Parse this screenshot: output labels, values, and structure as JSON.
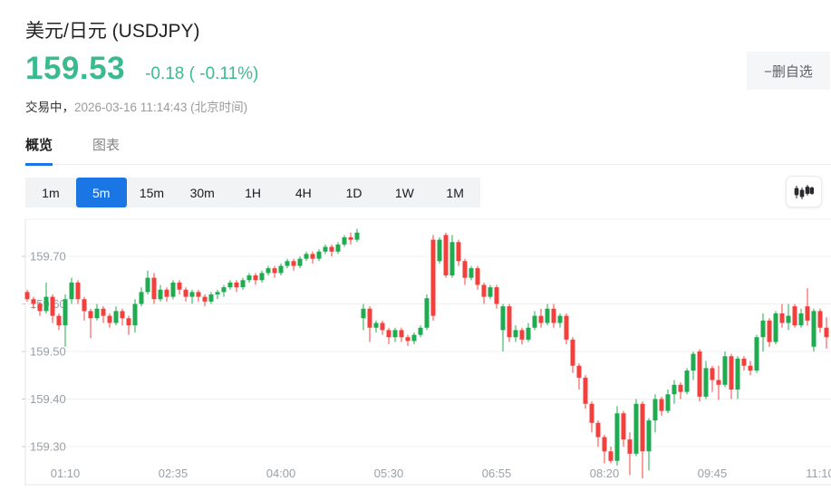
{
  "header": {
    "title": "美元/日元  (USDJPY)",
    "price": "159.53",
    "change": "-0.18 ( -0.11%)",
    "status_label": "交易中，",
    "status_time": "2026-03-16 11:14:43",
    "status_tz": " (北京时间)",
    "remove_button": "−删自选"
  },
  "tabs": [
    {
      "label": "概览",
      "active": true
    },
    {
      "label": "图表",
      "active": false
    }
  ],
  "intervals": [
    "1m",
    "5m",
    "15m",
    "30m",
    "1H",
    "4H",
    "1D",
    "1W",
    "1M"
  ],
  "active_interval": "5m",
  "colors": {
    "price_green": "#3abb8e",
    "candle_up": "#1fab4f",
    "candle_down": "#f4403c",
    "accent_blue": "#1a76e4",
    "grid": "#f0f0f0",
    "axis_border": "#e6e6e6",
    "label_gray": "#9aa0a6"
  },
  "chart_data": {
    "type": "candlestick",
    "title": "USDJPY 5m",
    "interval": "5m",
    "y_ticks": [
      {
        "label": "159.70",
        "value": 159.7
      },
      {
        "label": "159.60",
        "value": 159.6
      },
      {
        "label": "159.50",
        "value": 159.5
      },
      {
        "label": "159.40",
        "value": 159.4
      },
      {
        "label": "159.30",
        "value": 159.3
      }
    ],
    "x_ticks": [
      {
        "label": "01:10",
        "index": 6
      },
      {
        "label": "02:35",
        "index": 23
      },
      {
        "label": "04:00",
        "index": 40
      },
      {
        "label": "05:30",
        "index": 57
      },
      {
        "label": "06:55",
        "index": 74
      },
      {
        "label": "08:20",
        "index": 91
      },
      {
        "label": "09:45",
        "index": 108
      },
      {
        "label": "11:10",
        "index": 125
      }
    ],
    "ylim": [
      159.23,
      159.78
    ],
    "last_price": 159.53,
    "candles_format": [
      "open",
      "high",
      "low",
      "close"
    ],
    "candles": [
      [
        159.625,
        159.63,
        159.605,
        159.61
      ],
      [
        159.61,
        159.615,
        159.59,
        159.6
      ],
      [
        159.6,
        159.605,
        159.575,
        159.585
      ],
      [
        159.585,
        159.645,
        159.58,
        159.615
      ],
      [
        159.615,
        159.62,
        159.56,
        159.575
      ],
      [
        159.575,
        159.58,
        159.545,
        159.555
      ],
      [
        159.555,
        159.62,
        159.51,
        159.61
      ],
      [
        159.61,
        159.655,
        159.6,
        159.645
      ],
      [
        159.645,
        159.65,
        159.6,
        159.61
      ],
      [
        159.61,
        159.615,
        159.565,
        159.585
      ],
      [
        159.585,
        159.59,
        159.528,
        159.57
      ],
      [
        159.57,
        159.6,
        159.565,
        159.59
      ],
      [
        159.59,
        159.595,
        159.56,
        159.575
      ],
      [
        159.575,
        159.58,
        159.55,
        159.56
      ],
      [
        159.56,
        159.595,
        159.555,
        159.585
      ],
      [
        159.585,
        159.59,
        159.555,
        159.57
      ],
      [
        159.57,
        159.575,
        159.535,
        159.555
      ],
      [
        159.555,
        159.61,
        159.54,
        159.6
      ],
      [
        159.6,
        159.635,
        159.595,
        159.625
      ],
      [
        159.625,
        159.67,
        159.62,
        159.655
      ],
      [
        159.655,
        159.665,
        159.6,
        159.61
      ],
      [
        159.61,
        159.64,
        159.605,
        159.63
      ],
      [
        159.63,
        159.635,
        159.605,
        159.615
      ],
      [
        159.615,
        159.65,
        159.61,
        159.645
      ],
      [
        159.645,
        159.65,
        159.62,
        159.63
      ],
      [
        159.63,
        159.635,
        159.605,
        159.615
      ],
      [
        159.615,
        159.63,
        159.6,
        159.625
      ],
      [
        159.625,
        159.63,
        159.605,
        159.615
      ],
      [
        159.615,
        159.62,
        159.595,
        159.605
      ],
      [
        159.605,
        159.625,
        159.6,
        159.62
      ],
      [
        159.62,
        159.63,
        159.61,
        159.625
      ],
      [
        159.625,
        159.64,
        159.615,
        159.635
      ],
      [
        159.635,
        159.65,
        159.63,
        159.645
      ],
      [
        159.645,
        159.65,
        159.625,
        159.635
      ],
      [
        159.635,
        159.655,
        159.63,
        159.65
      ],
      [
        159.65,
        159.665,
        159.645,
        159.66
      ],
      [
        159.66,
        159.665,
        159.64,
        159.65
      ],
      [
        159.65,
        159.67,
        159.645,
        159.665
      ],
      [
        159.665,
        159.68,
        159.66,
        159.675
      ],
      [
        159.675,
        159.68,
        159.655,
        159.665
      ],
      [
        159.665,
        159.685,
        159.66,
        159.68
      ],
      [
        159.68,
        159.695,
        159.675,
        159.69
      ],
      [
        159.69,
        159.695,
        159.67,
        159.68
      ],
      [
        159.68,
        159.7,
        159.675,
        159.695
      ],
      [
        159.695,
        159.71,
        159.69,
        159.705
      ],
      [
        159.705,
        159.71,
        159.685,
        159.695
      ],
      [
        159.695,
        159.715,
        159.69,
        159.71
      ],
      [
        159.71,
        159.725,
        159.705,
        159.72
      ],
      [
        159.72,
        159.725,
        159.7,
        159.71
      ],
      [
        159.71,
        159.73,
        159.705,
        159.725
      ],
      [
        159.725,
        159.745,
        159.72,
        159.74
      ],
      [
        159.74,
        159.75,
        159.725,
        159.735
      ],
      [
        159.735,
        159.758,
        159.73,
        159.75
      ],
      [
        159.57,
        159.6,
        159.545,
        159.59
      ],
      [
        159.59,
        159.595,
        159.52,
        159.55
      ],
      [
        159.55,
        159.565,
        159.54,
        159.56
      ],
      [
        159.56,
        159.565,
        159.535,
        159.545
      ],
      [
        159.545,
        159.55,
        159.515,
        159.53
      ],
      [
        159.53,
        159.55,
        159.52,
        159.545
      ],
      [
        159.545,
        159.55,
        159.52,
        159.53
      ],
      [
        159.53,
        159.535,
        159.512,
        159.522
      ],
      [
        159.522,
        159.54,
        159.515,
        159.535
      ],
      [
        159.535,
        159.555,
        159.53,
        159.55
      ],
      [
        159.55,
        159.62,
        159.545,
        159.612
      ],
      [
        159.735,
        159.745,
        159.565,
        159.575
      ],
      [
        159.69,
        159.74,
        159.685,
        159.735
      ],
      [
        159.745,
        159.75,
        159.655,
        159.66
      ],
      [
        159.66,
        159.745,
        159.655,
        159.73
      ],
      [
        159.73,
        159.735,
        159.68,
        159.69
      ],
      [
        159.69,
        159.695,
        159.64,
        159.655
      ],
      [
        159.655,
        159.68,
        159.65,
        159.675
      ],
      [
        159.675,
        159.68,
        159.63,
        159.64
      ],
      [
        159.64,
        159.645,
        159.6,
        159.615
      ],
      [
        159.615,
        159.64,
        159.61,
        159.635
      ],
      [
        159.635,
        159.64,
        159.59,
        159.6
      ],
      [
        159.545,
        159.6,
        159.5,
        159.595
      ],
      [
        159.595,
        159.6,
        159.52,
        159.53
      ],
      [
        159.53,
        159.555,
        159.52,
        159.545
      ],
      [
        159.545,
        159.55,
        159.515,
        159.525
      ],
      [
        159.525,
        159.56,
        159.52,
        159.55
      ],
      [
        159.55,
        159.585,
        159.545,
        159.575
      ],
      [
        159.575,
        159.59,
        159.55,
        159.56
      ],
      [
        159.56,
        159.6,
        159.555,
        159.59
      ],
      [
        159.59,
        159.6,
        159.55,
        159.56
      ],
      [
        159.56,
        159.58,
        159.55,
        159.575
      ],
      [
        159.575,
        159.58,
        159.515,
        159.525
      ],
      [
        159.525,
        159.53,
        159.455,
        159.47
      ],
      [
        159.47,
        159.475,
        159.42,
        159.445
      ],
      [
        159.445,
        159.45,
        159.38,
        159.39
      ],
      [
        159.39,
        159.395,
        159.33,
        159.35
      ],
      [
        159.35,
        159.355,
        159.3,
        159.32
      ],
      [
        159.32,
        159.325,
        159.265,
        159.29
      ],
      [
        159.29,
        159.3,
        159.265,
        159.27
      ],
      [
        159.27,
        159.385,
        159.26,
        159.37
      ],
      [
        159.37,
        159.375,
        159.3,
        159.315
      ],
      [
        159.315,
        159.33,
        159.24,
        159.285
      ],
      [
        159.285,
        159.4,
        159.28,
        159.39
      ],
      [
        159.39,
        159.395,
        159.233,
        159.29
      ],
      [
        159.29,
        159.36,
        159.25,
        159.355
      ],
      [
        159.355,
        159.41,
        159.33,
        159.4
      ],
      [
        159.4,
        159.405,
        159.365,
        159.375
      ],
      [
        159.375,
        159.42,
        159.37,
        159.41
      ],
      [
        159.41,
        159.44,
        159.39,
        159.43
      ],
      [
        159.43,
        159.435,
        159.4,
        159.415
      ],
      [
        159.415,
        159.465,
        159.41,
        159.46
      ],
      [
        159.46,
        159.5,
        159.44,
        159.495
      ],
      [
        159.5,
        159.505,
        159.395,
        159.405
      ],
      [
        159.405,
        159.48,
        159.4,
        159.465
      ],
      [
        159.465,
        159.47,
        159.415,
        159.44
      ],
      [
        159.44,
        159.47,
        159.398,
        159.43
      ],
      [
        159.43,
        159.5,
        159.425,
        159.49
      ],
      [
        159.49,
        159.495,
        159.4,
        159.42
      ],
      [
        159.42,
        159.49,
        159.4,
        159.485
      ],
      [
        159.485,
        159.49,
        159.46,
        159.47
      ],
      [
        159.47,
        159.48,
        159.45,
        159.46
      ],
      [
        159.46,
        159.535,
        159.455,
        159.53
      ],
      [
        159.53,
        159.58,
        159.5,
        159.565
      ],
      [
        159.565,
        159.57,
        159.51,
        159.52
      ],
      [
        159.52,
        159.585,
        159.515,
        159.58
      ],
      [
        159.58,
        159.6,
        159.55,
        159.56
      ],
      [
        159.56,
        159.6,
        159.545,
        159.575
      ],
      [
        159.595,
        159.6,
        159.55,
        159.555
      ],
      [
        159.555,
        159.59,
        159.55,
        159.58
      ],
      [
        159.595,
        159.633,
        159.555,
        159.565
      ],
      [
        159.51,
        159.59,
        159.5,
        159.585
      ],
      [
        159.585,
        159.59,
        159.54,
        159.55
      ],
      [
        159.55,
        159.572,
        159.506,
        159.53
      ]
    ]
  }
}
